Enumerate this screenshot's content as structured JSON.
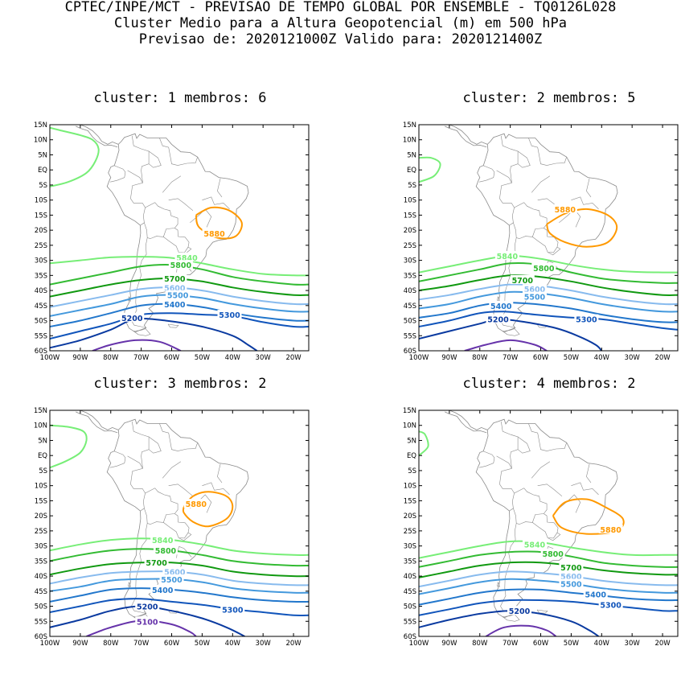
{
  "header": {
    "line1": "CPTEC/INPE/MCT - PREVISAO DE TEMPO GLOBAL POR ENSEMBLE - TQ0126L028",
    "line2": "Cluster Medio para a Altura Geopotencial (m) em 500 hPa",
    "line3": "Previsao de: 2020121000Z   Valido para: 2020121400Z"
  },
  "lat_labels": [
    "15N",
    "10N",
    "5N",
    "EQ",
    "5S",
    "10S",
    "15S",
    "20S",
    "25S",
    "30S",
    "35S",
    "40S",
    "45S",
    "50S",
    "55S",
    "60S"
  ],
  "lon_labels": [
    "100W",
    "90W",
    "80W",
    "70W",
    "60W",
    "50W",
    "40W",
    "30W",
    "20W"
  ],
  "contour_colors": {
    "5880": "#ff9900",
    "5840": "#77ee77",
    "5800": "#33bb33",
    "5700": "#119911",
    "5600": "#88bbee",
    "5500": "#4499dd",
    "5400": "#2277cc",
    "5300": "#1155bb",
    "5200": "#0a3aa0",
    "5100": "#6633aa"
  },
  "panels": [
    {
      "title": "cluster: 1  membros: 6",
      "labels": [
        {
          "value": "5880",
          "lon": -46,
          "lat": -21
        },
        {
          "value": "5840",
          "lon": -55,
          "lat": -29
        },
        {
          "value": "5800",
          "lon": -57,
          "lat": -31.5
        },
        {
          "value": "5700",
          "lon": -59,
          "lat": -36
        },
        {
          "value": "5600",
          "lon": -59,
          "lat": -39
        },
        {
          "value": "5500",
          "lon": -58,
          "lat": -41.5
        },
        {
          "value": "5400",
          "lon": -59,
          "lat": -44.5
        },
        {
          "value": "5300",
          "lon": -41,
          "lat": -48
        },
        {
          "value": "5200",
          "lon": -73,
          "lat": -49
        }
      ]
    },
    {
      "title": "cluster: 2  membros: 5",
      "labels": [
        {
          "value": "5880",
          "lon": -52,
          "lat": -13
        },
        {
          "value": "5840",
          "lon": -71,
          "lat": -28.5
        },
        {
          "value": "5800",
          "lon": -59,
          "lat": -32.5
        },
        {
          "value": "5700",
          "lon": -66,
          "lat": -36.5
        },
        {
          "value": "5600",
          "lon": -62,
          "lat": -39.5
        },
        {
          "value": "5500",
          "lon": -62,
          "lat": -42
        },
        {
          "value": "5400",
          "lon": -73,
          "lat": -45
        },
        {
          "value": "5300",
          "lon": -45,
          "lat": -49.5
        },
        {
          "value": "5200",
          "lon": -74,
          "lat": -49.5
        }
      ]
    },
    {
      "title": "cluster: 3  membros: 2",
      "labels": [
        {
          "value": "5880",
          "lon": -52,
          "lat": -16
        },
        {
          "value": "5840",
          "lon": -63,
          "lat": -28
        },
        {
          "value": "5800",
          "lon": -62,
          "lat": -31.5
        },
        {
          "value": "5700",
          "lon": -65,
          "lat": -35.5
        },
        {
          "value": "5600",
          "lon": -59,
          "lat": -38.5
        },
        {
          "value": "5500",
          "lon": -60,
          "lat": -41
        },
        {
          "value": "5400",
          "lon": -63,
          "lat": -44.5
        },
        {
          "value": "5300",
          "lon": -40,
          "lat": -51
        },
        {
          "value": "5200",
          "lon": -68,
          "lat": -50
        },
        {
          "value": "5100",
          "lon": -68,
          "lat": -55
        }
      ]
    },
    {
      "title": "cluster: 4  membros: 2",
      "labels": [
        {
          "value": "5880",
          "lon": -37,
          "lat": -24.5
        },
        {
          "value": "5840",
          "lon": -62,
          "lat": -29.5
        },
        {
          "value": "5800",
          "lon": -56,
          "lat": -32.5
        },
        {
          "value": "5700",
          "lon": -50,
          "lat": -37
        },
        {
          "value": "5600",
          "lon": -50,
          "lat": -40
        },
        {
          "value": "5500",
          "lon": -50,
          "lat": -42.5
        },
        {
          "value": "5400",
          "lon": -42,
          "lat": -46
        },
        {
          "value": "5300",
          "lon": -37,
          "lat": -49.5
        },
        {
          "value": "5200",
          "lon": -67,
          "lat": -51.5
        }
      ]
    }
  ]
}
